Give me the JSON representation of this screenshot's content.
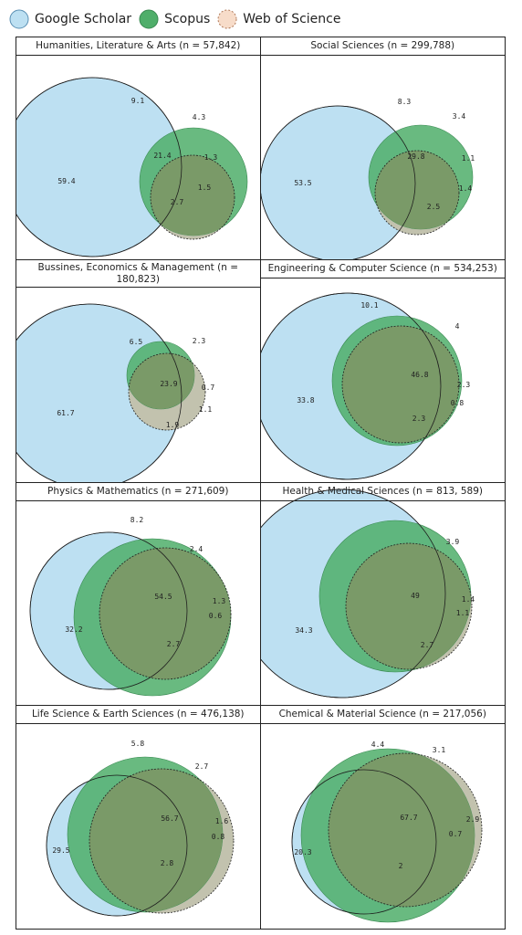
{
  "legend": [
    {
      "label": "Google Scholar",
      "color": "#bde0f2",
      "stroke": "#5a8fb3",
      "style": "solid"
    },
    {
      "label": "Scopus",
      "color": "#4fae6a",
      "stroke": "#3a8a52",
      "style": "solid"
    },
    {
      "label": "Web of Science",
      "color": "#f7dcc9",
      "stroke": "#b07a5a",
      "style": "dashed"
    }
  ],
  "chart_data": [
    {
      "type": "venn",
      "title": "Humanities, Literature & Arts (n = 57,842)",
      "labels": [
        "59.4",
        "9.1",
        "4.3",
        "21.4",
        "1.3",
        "1.5",
        "2.7"
      ]
    },
    {
      "type": "venn",
      "title": "Social Sciences (n = 299,788)",
      "labels": [
        "53.5",
        "8.3",
        "3.4",
        "29.8",
        "1.1",
        "1.4",
        "2.5"
      ]
    },
    {
      "type": "venn",
      "title": "Bussines, Economics & Management (n = 180,823)",
      "labels": [
        "61.7",
        "6.5",
        "2.3",
        "23.9",
        "0.7",
        "1.1",
        "1.9"
      ]
    },
    {
      "type": "venn",
      "title": "Engineering & Computer Science (n = 534,253)",
      "labels": [
        "33.8",
        "10.1",
        "4",
        "46.8",
        "2.3",
        "0.8",
        "2.3"
      ]
    },
    {
      "type": "venn",
      "title": "Physics & Mathematics (n = 271,609)",
      "labels": [
        "32.2",
        "8.2",
        "2.4",
        "54.5",
        "1.3",
        "0.6",
        "2.7"
      ]
    },
    {
      "type": "venn",
      "title": "Health & Medical Sciences (n = 813, 589)",
      "labels": [
        "34.3",
        "",
        "3.9",
        "49",
        "1.4",
        "1.1",
        "2.7"
      ]
    },
    {
      "type": "venn",
      "title": "Life Science & Earth Sciences (n = 476,138)",
      "labels": [
        "29.5",
        "5.8",
        "2.7",
        "56.7",
        "1.6",
        "0.8",
        "2.8"
      ]
    },
    {
      "type": "venn",
      "title": "Chemical & Material Science (n = 217,056)",
      "labels": [
        "20.3",
        "4.4",
        "3.1",
        "67.7",
        "2.9",
        "0.7",
        "2"
      ]
    }
  ]
}
